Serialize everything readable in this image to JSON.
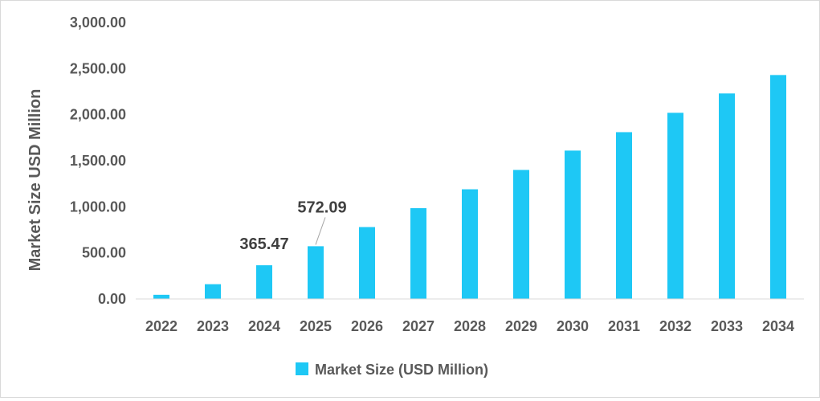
{
  "chart_data": {
    "type": "bar",
    "title": "",
    "xlabel": "",
    "ylabel": "Market Size USD Million",
    "ylim": [
      0,
      3000
    ],
    "y_ticks": [
      "0.00",
      "500.00",
      "1,000.00",
      "1,500.00",
      "2,000.00",
      "2,500.00",
      "3,000.00"
    ],
    "y_tick_values": [
      0,
      500,
      1000,
      1500,
      2000,
      2500,
      3000
    ],
    "categories": [
      "2022",
      "2023",
      "2024",
      "2025",
      "2026",
      "2027",
      "2028",
      "2029",
      "2030",
      "2031",
      "2032",
      "2033",
      "2034"
    ],
    "series": [
      {
        "name": "Market Size (USD Million)",
        "color": "#1ec8f5",
        "values": [
          45,
          160,
          365.47,
          572.09,
          780,
          985,
          1190,
          1400,
          1610,
          1810,
          2020,
          2230,
          2430
        ]
      }
    ],
    "data_labels": [
      {
        "category": "2024",
        "text": "365.47"
      },
      {
        "category": "2025",
        "text": "572.09"
      }
    ],
    "grid": false,
    "legend": {
      "position": "bottom",
      "label": "Market Size (USD Million)"
    }
  }
}
